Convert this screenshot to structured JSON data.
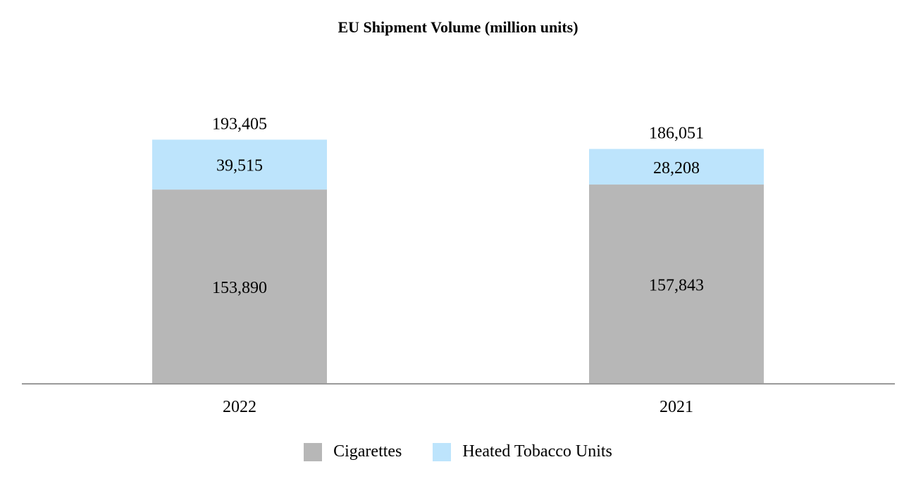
{
  "chart_data": {
    "type": "bar",
    "stacked": true,
    "title": "EU Shipment Volume (million units)",
    "categories": [
      "2022",
      "2021"
    ],
    "series": [
      {
        "name": "Cigarettes",
        "values": [
          153890,
          157843
        ],
        "color": "#b7b7b7"
      },
      {
        "name": "Heated Tobacco Units",
        "values": [
          39515,
          28208
        ],
        "color": "#bde4fc"
      }
    ],
    "totals": [
      193405,
      186051
    ],
    "segment_labels": [
      [
        "153,890",
        "39,515"
      ],
      [
        "157,843",
        "28,208"
      ]
    ],
    "total_labels": [
      "193,405",
      "186,051"
    ],
    "ylim": [
      0,
      250000
    ],
    "grid": false,
    "legend_position": "bottom"
  },
  "axis_color": "#9a9a9a"
}
